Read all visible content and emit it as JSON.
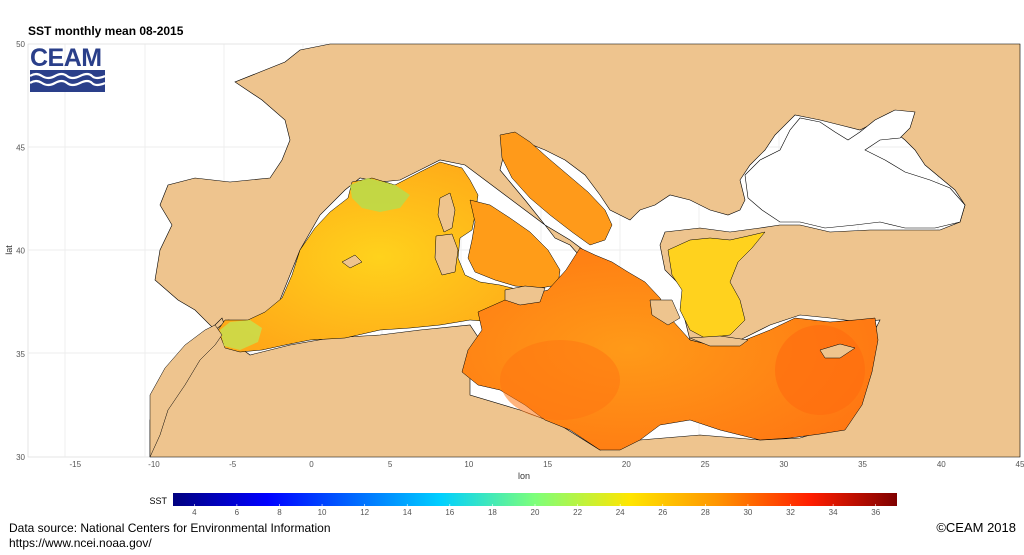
{
  "title": "SST monthly mean 08-2015",
  "logo_text": "CEAM",
  "axes": {
    "xlabel": "lon",
    "ylabel": "lat",
    "x_ticks": [
      "-15",
      "-10",
      "-5",
      "0",
      "5",
      "10",
      "15",
      "20",
      "25",
      "30",
      "35",
      "40",
      "45"
    ],
    "y_ticks": [
      "30",
      "35",
      "40",
      "45",
      "50"
    ],
    "xlim": [
      -18,
      45
    ],
    "ylim": [
      30,
      50
    ]
  },
  "colorbar": {
    "label": "SST",
    "ticks": [
      "4",
      "6",
      "8",
      "10",
      "12",
      "14",
      "16",
      "18",
      "20",
      "22",
      "24",
      "26",
      "28",
      "30",
      "32",
      "34",
      "36"
    ],
    "range": [
      3,
      37
    ]
  },
  "colors": {
    "land": "#eec48e",
    "panel": "#ffffff",
    "grid": "#e6e6e6",
    "sea_low": "#a8d85a",
    "sea_mid": "#ffc21c",
    "sea_high": "#ff7a10",
    "logo_blue": "#2a3f8a"
  },
  "footer": {
    "source": "Data source: National Centers for Environmental Information",
    "url": "https://www.ncei.noaa.gov/",
    "copyright": "©CEAM 2018"
  }
}
